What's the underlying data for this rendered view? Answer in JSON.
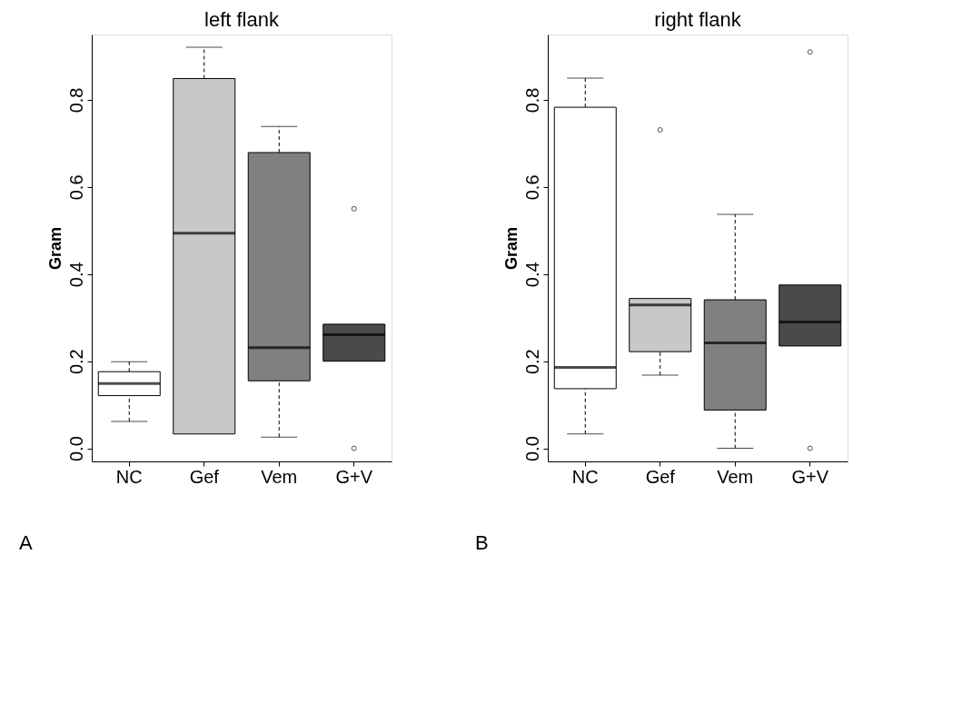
{
  "chart_data": [
    {
      "type": "box",
      "title": "left flank",
      "ylabel": "Gram",
      "categories": [
        "NC",
        "Gef",
        "Vem",
        "G+V"
      ],
      "colors": [
        "#ffffff",
        "#c8c8c8",
        "#808080",
        "#4a4a4a"
      ],
      "ylim": [
        -0.03,
        0.95
      ],
      "yticks": [
        {
          "value": 0,
          "label": "0.0"
        },
        0.2,
        0.4,
        0.6,
        0.8
      ],
      "grid": false,
      "annotations": [
        "A"
      ],
      "boxes": [
        {
          "low": 0.062,
          "q1": 0.121,
          "median": 0.149,
          "q3": 0.176,
          "high": 0.199
        },
        {
          "low": 0.033,
          "q1": 0.033,
          "median": 0.494,
          "q3": 0.849,
          "high": 0.921
        },
        {
          "low": 0.026,
          "q1": 0.155,
          "median": 0.231,
          "q3": 0.679,
          "high": 0.739
        },
        {
          "low": 0.2,
          "q1": 0.2,
          "median": 0.261,
          "q3": 0.285,
          "high": 0.285,
          "outliers": [
            0.55,
            0.0
          ]
        }
      ]
    },
    {
      "type": "box",
      "title": "right flank",
      "ylabel": "Gram",
      "categories": [
        "NC",
        "Gef",
        "Vem",
        "G+V"
      ],
      "colors": [
        "#ffffff",
        "#c8c8c8",
        "#808080",
        "#4a4a4a"
      ],
      "ylim": [
        -0.03,
        0.95
      ],
      "yticks": [
        {
          "value": 0,
          "label": "0.0"
        },
        0.2,
        0.4,
        0.6,
        0.8
      ],
      "grid": false,
      "annotations": [
        "B"
      ],
      "boxes": [
        {
          "low": 0.033,
          "q1": 0.137,
          "median": 0.186,
          "q3": 0.783,
          "high": 0.85
        },
        {
          "low": 0.168,
          "q1": 0.222,
          "median": 0.329,
          "q3": 0.344,
          "high": 0.344,
          "outliers": [
            0.731
          ]
        },
        {
          "low": 0.0,
          "q1": 0.088,
          "median": 0.242,
          "q3": 0.341,
          "high": 0.537
        },
        {
          "low": 0.235,
          "q1": 0.235,
          "median": 0.29,
          "q3": 0.375,
          "high": 0.375,
          "outliers": [
            0.91,
            0.0
          ]
        }
      ]
    }
  ]
}
